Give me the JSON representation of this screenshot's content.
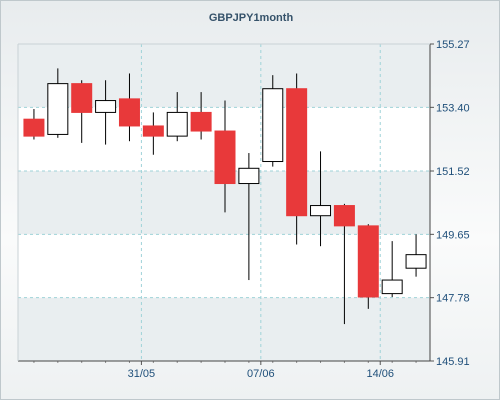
{
  "chart_data": {
    "type": "candlestick",
    "title": "GBPJPY1month",
    "xlabel": "",
    "ylabel": "",
    "ylim": [
      145.91,
      155.27
    ],
    "y_ticks": [
      145.91,
      147.78,
      149.65,
      151.52,
      153.4,
      155.27
    ],
    "y_tick_labels": [
      "145.91",
      "147.78",
      "149.65",
      "151.52",
      "153.40",
      "155.27"
    ],
    "y_axis_position": "right",
    "x_tick_labels": [
      {
        "label": "31/05",
        "index": 4.5
      },
      {
        "label": "07/06",
        "index": 9.5
      },
      {
        "label": "14/06",
        "index": 14.5
      }
    ],
    "grid": true,
    "colors": {
      "up_fill": "#ffffff",
      "down_fill": "#e8393a",
      "outline": "#000000",
      "grid": "#9fd3d8",
      "band": "#e9eef0"
    },
    "candles": [
      {
        "open": 153.05,
        "high": 153.35,
        "low": 152.45,
        "close": 152.55
      },
      {
        "open": 152.6,
        "high": 154.55,
        "low": 152.5,
        "close": 154.1
      },
      {
        "open": 154.1,
        "high": 154.2,
        "low": 152.35,
        "close": 153.25
      },
      {
        "open": 153.25,
        "high": 154.2,
        "low": 152.3,
        "close": 153.6
      },
      {
        "open": 153.65,
        "high": 154.4,
        "low": 152.4,
        "close": 152.85
      },
      {
        "open": 152.85,
        "high": 153.25,
        "low": 152.0,
        "close": 152.55
      },
      {
        "open": 152.55,
        "high": 153.85,
        "low": 152.4,
        "close": 153.25
      },
      {
        "open": 153.25,
        "high": 153.85,
        "low": 152.45,
        "close": 152.7
      },
      {
        "open": 152.7,
        "high": 153.6,
        "low": 150.3,
        "close": 151.15
      },
      {
        "open": 151.15,
        "high": 152.05,
        "low": 148.3,
        "close": 151.6
      },
      {
        "open": 151.8,
        "high": 154.35,
        "low": 151.65,
        "close": 153.95
      },
      {
        "open": 153.95,
        "high": 154.4,
        "low": 149.35,
        "close": 150.2
      },
      {
        "open": 150.2,
        "high": 152.1,
        "low": 149.3,
        "close": 150.5
      },
      {
        "open": 150.5,
        "high": 150.55,
        "low": 147.0,
        "close": 149.9
      },
      {
        "open": 149.9,
        "high": 149.95,
        "low": 147.45,
        "close": 147.8
      },
      {
        "open": 147.9,
        "high": 149.45,
        "low": 147.8,
        "close": 148.3
      },
      {
        "open": 148.65,
        "high": 149.65,
        "low": 148.4,
        "close": 149.05
      }
    ]
  }
}
